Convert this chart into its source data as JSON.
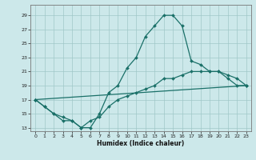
{
  "xlabel": "Humidex (Indice chaleur)",
  "bg_color": "#cce8ea",
  "line_color": "#1a7068",
  "grid_color": "#a0c8c8",
  "xlim": [
    -0.5,
    23.5
  ],
  "ylim": [
    12.5,
    30.5
  ],
  "xticks": [
    0,
    1,
    2,
    3,
    4,
    5,
    6,
    7,
    8,
    9,
    10,
    11,
    12,
    13,
    14,
    15,
    16,
    17,
    18,
    19,
    20,
    21,
    22,
    23
  ],
  "yticks": [
    13,
    15,
    17,
    19,
    21,
    23,
    25,
    27,
    29
  ],
  "line1_x": [
    0,
    1,
    2,
    3,
    4,
    5,
    6,
    7,
    8,
    9,
    10,
    11,
    12,
    13,
    14,
    15,
    16,
    17,
    18,
    19,
    20,
    21,
    22,
    23
  ],
  "line1_y": [
    17,
    16,
    15,
    14,
    14,
    13,
    13,
    15,
    18,
    19,
    21.5,
    23,
    26,
    27.5,
    29,
    29,
    27.5,
    22.5,
    22,
    21,
    21,
    20,
    19,
    19
  ],
  "line2_x": [
    0,
    1,
    2,
    3,
    4,
    5,
    6,
    7,
    8,
    9,
    10,
    11,
    12,
    13,
    14,
    15,
    16,
    17,
    18,
    19,
    20,
    21,
    22,
    23
  ],
  "line2_y": [
    17,
    16,
    15,
    14.5,
    14,
    13,
    14,
    14.5,
    16,
    17,
    17.5,
    18,
    18.5,
    19,
    20,
    20,
    20.5,
    21,
    21,
    21,
    21,
    20.5,
    20,
    19
  ],
  "line3_x": [
    0,
    23
  ],
  "line3_y": [
    17,
    19
  ]
}
